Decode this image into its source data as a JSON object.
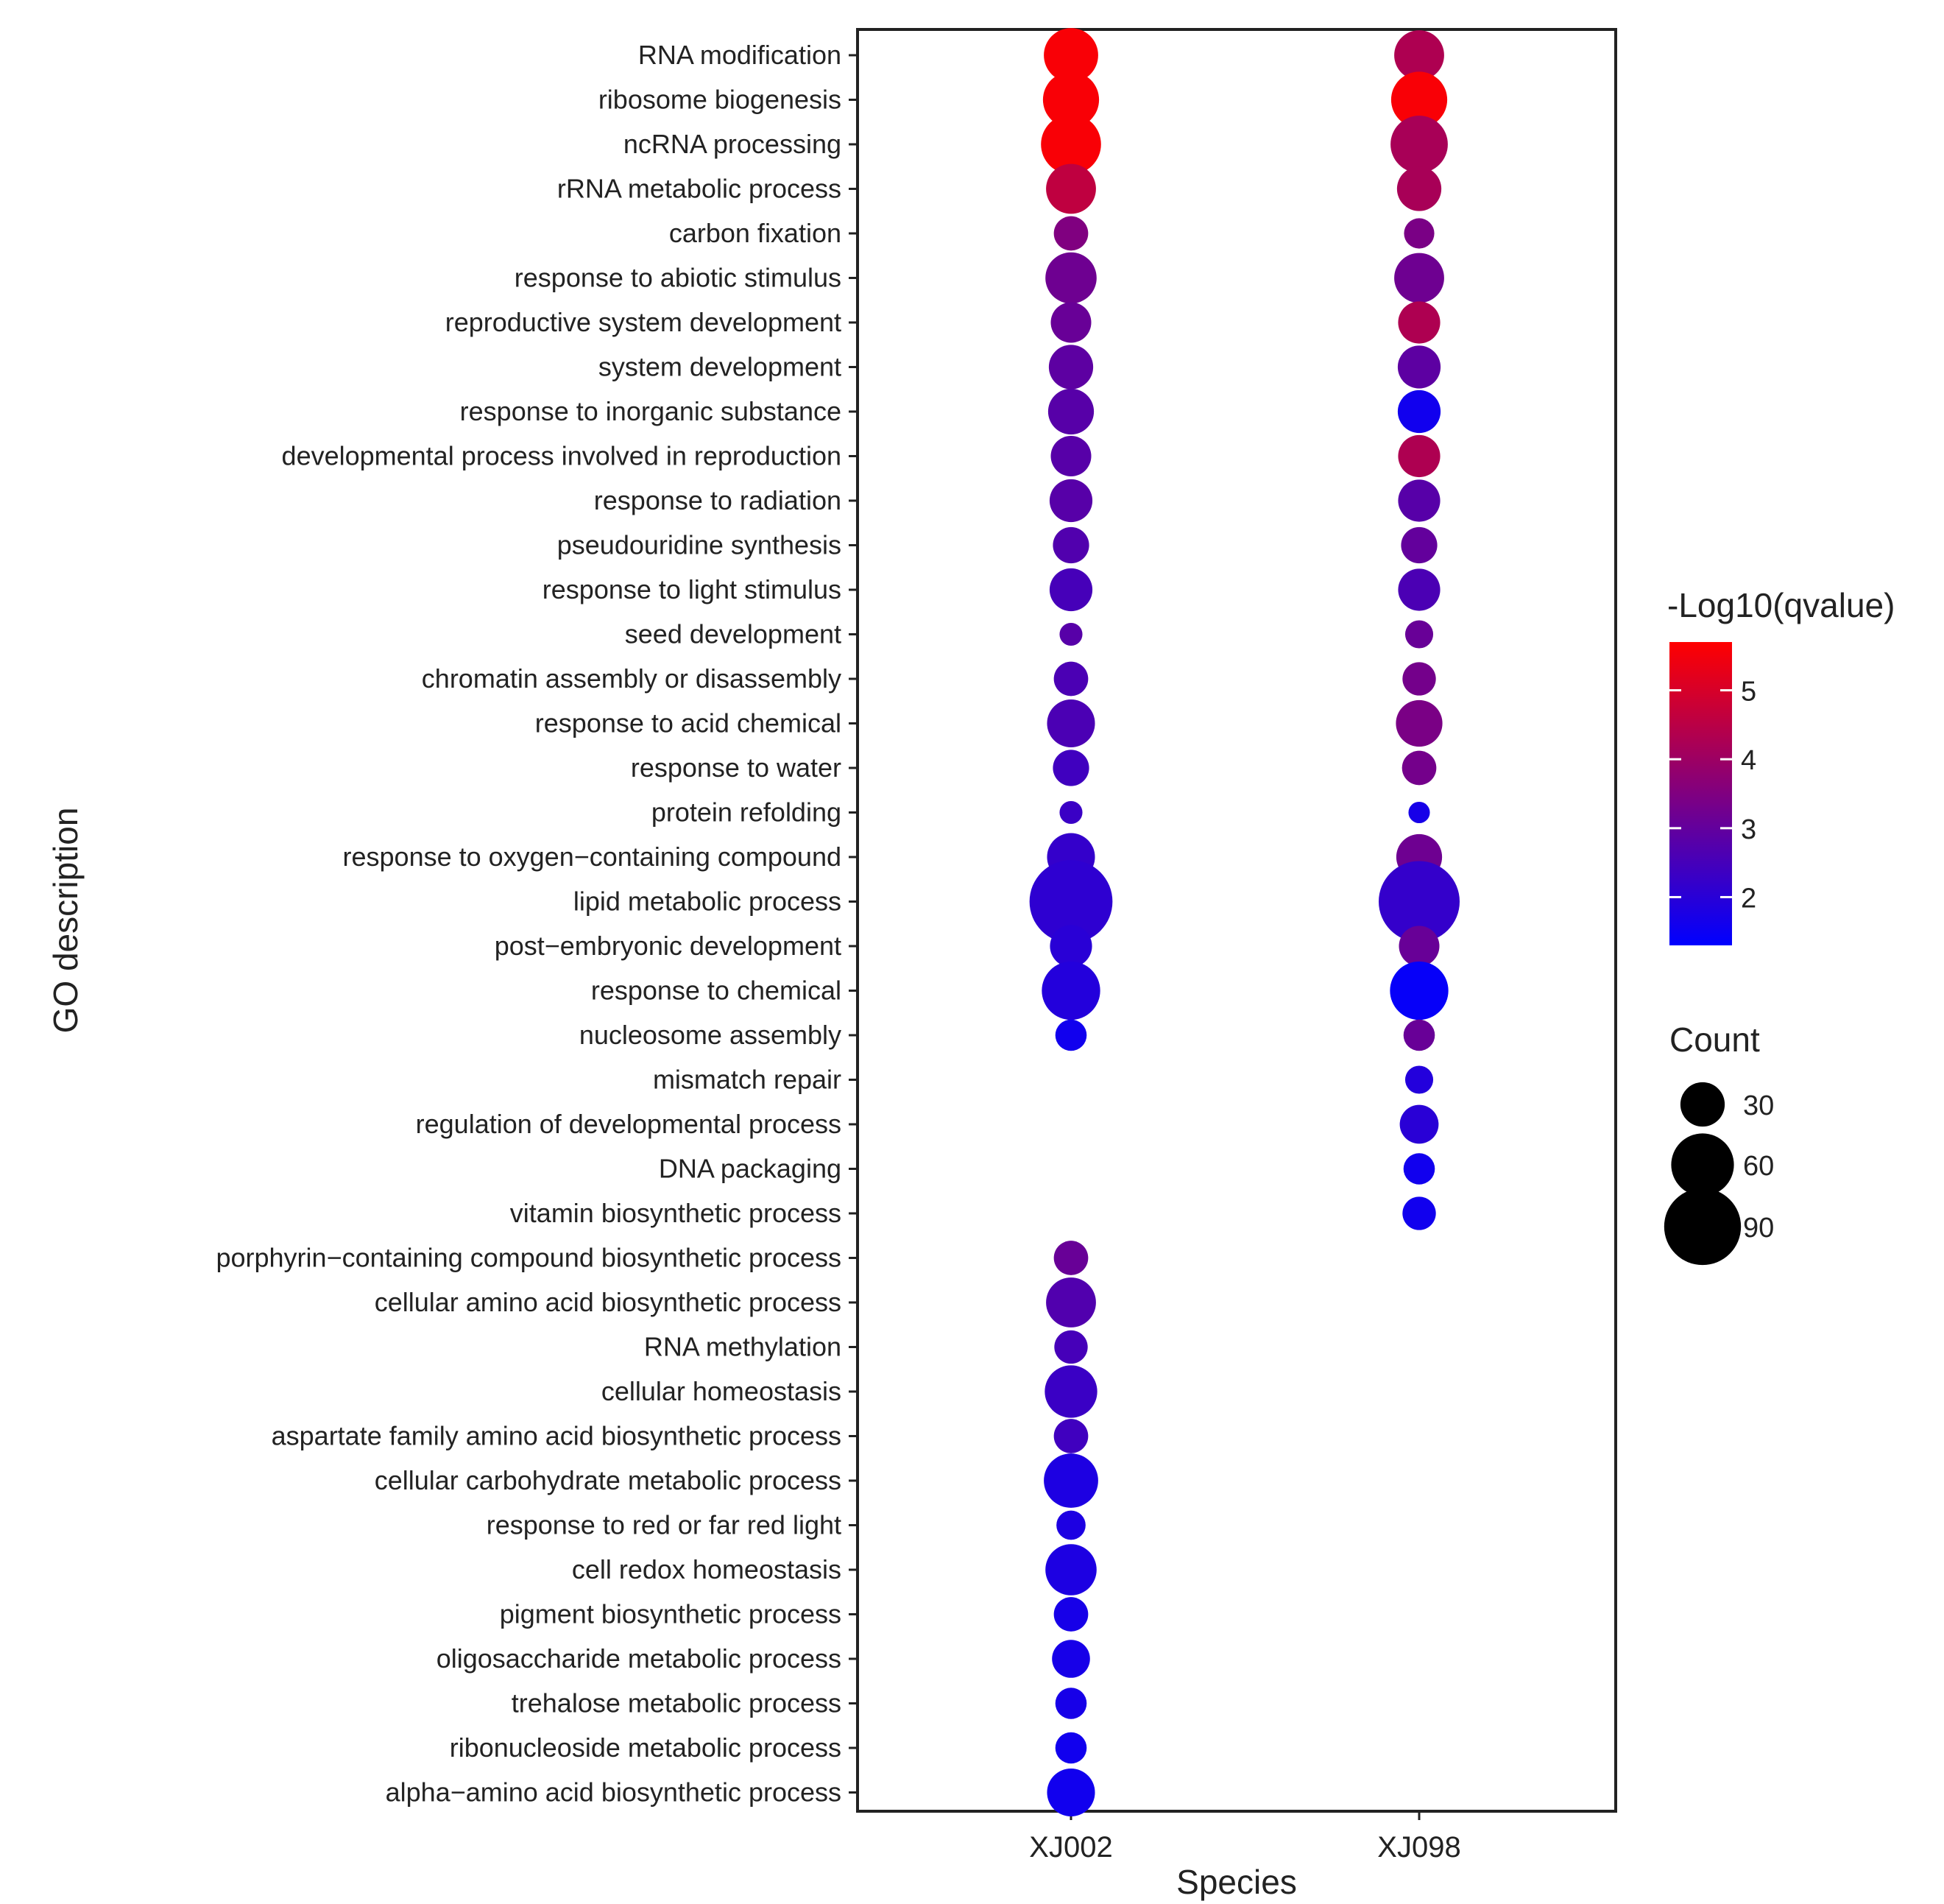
{
  "chart_data": {
    "type": "scatter",
    "title": "",
    "xlabel": "Species",
    "ylabel": "GO description",
    "x": [
      "XJ002",
      "XJ098"
    ],
    "categories": [
      "RNA modification",
      "ribosome biogenesis",
      "ncRNA processing",
      "rRNA metabolic process",
      "carbon fixation",
      "response to abiotic stimulus",
      "reproductive system development",
      "system development",
      "response to inorganic substance",
      "developmental process involved in reproduction",
      "response to radiation",
      "pseudouridine synthesis",
      "response to light stimulus",
      "seed development",
      "chromatin assembly or disassembly",
      "response to acid chemical",
      "response to water",
      "protein refolding",
      "response to oxygen−containing compound",
      "lipid metabolic process",
      "post−embryonic development",
      "response to chemical",
      "nucleosome assembly",
      "mismatch repair",
      "regulation of developmental process",
      "DNA packaging",
      "vitamin biosynthetic process",
      "porphyrin−containing compound biosynthetic process",
      "cellular amino acid biosynthetic process",
      "RNA methylation",
      "cellular homeostasis",
      "aspartate family amino acid biosynthetic process",
      "cellular carbohydrate metabolic process",
      "response to red or far red light",
      "cell redox homeostasis",
      "pigment biosynthetic process",
      "oligosaccharide metabolic process",
      "trehalose metabolic process",
      "ribonucleoside metabolic process",
      "alpha−amino acid biosynthetic process"
    ],
    "series": [
      {
        "name": "XJ002",
        "count": [
          45,
          48,
          55,
          38,
          18,
          40,
          25,
          30,
          32,
          25,
          28,
          20,
          28,
          8,
          18,
          35,
          20,
          8,
          35,
          105,
          27,
          52,
          15,
          null,
          null,
          null,
          null,
          18,
          38,
          17,
          42,
          18,
          45,
          13,
          40,
          18,
          22,
          15,
          15,
          35
        ],
        "neg_log10_qvalue": [
          5.6,
          5.6,
          5.6,
          4.6,
          3.5,
          3.2,
          3.1,
          2.9,
          2.8,
          2.8,
          2.8,
          2.7,
          2.5,
          2.8,
          2.6,
          2.6,
          2.4,
          2.3,
          2.2,
          2.1,
          2.0,
          1.9,
          1.6,
          null,
          null,
          null,
          null,
          3.1,
          2.7,
          2.5,
          2.3,
          2.4,
          1.8,
          1.8,
          1.8,
          1.7,
          1.7,
          1.7,
          1.6,
          1.6
        ]
      },
      {
        "name": "XJ098",
        "count": [
          38,
          48,
          50,
          30,
          14,
          38,
          27,
          28,
          28,
          27,
          27,
          20,
          27,
          12,
          17,
          33,
          18,
          7,
          32,
          100,
          25,
          52,
          15,
          12,
          23,
          15,
          17,
          null,
          null,
          null,
          null,
          null,
          null,
          null,
          null,
          null,
          null,
          null,
          null,
          null
        ],
        "neg_log10_qvalue": [
          4.3,
          5.6,
          4.2,
          4.2,
          3.4,
          3.2,
          4.3,
          2.9,
          1.6,
          4.3,
          2.8,
          3.0,
          2.6,
          3.1,
          3.3,
          3.4,
          3.3,
          1.7,
          3.2,
          2.2,
          3.1,
          1.4,
          3.1,
          1.9,
          2.0,
          1.6,
          1.6,
          null,
          null,
          null,
          null,
          null,
          null,
          null,
          null,
          null,
          null,
          null,
          null,
          null
        ]
      }
    ],
    "color_legend": {
      "title": "-Log10(qvalue)",
      "ticks": [
        5,
        4,
        3,
        2
      ],
      "range": [
        1.3,
        5.7
      ],
      "low_color": "#0000ff",
      "high_color": "#ff0000"
    },
    "size_legend": {
      "title": "Count",
      "values": [
        30,
        60,
        90
      ]
    },
    "grid": false
  }
}
